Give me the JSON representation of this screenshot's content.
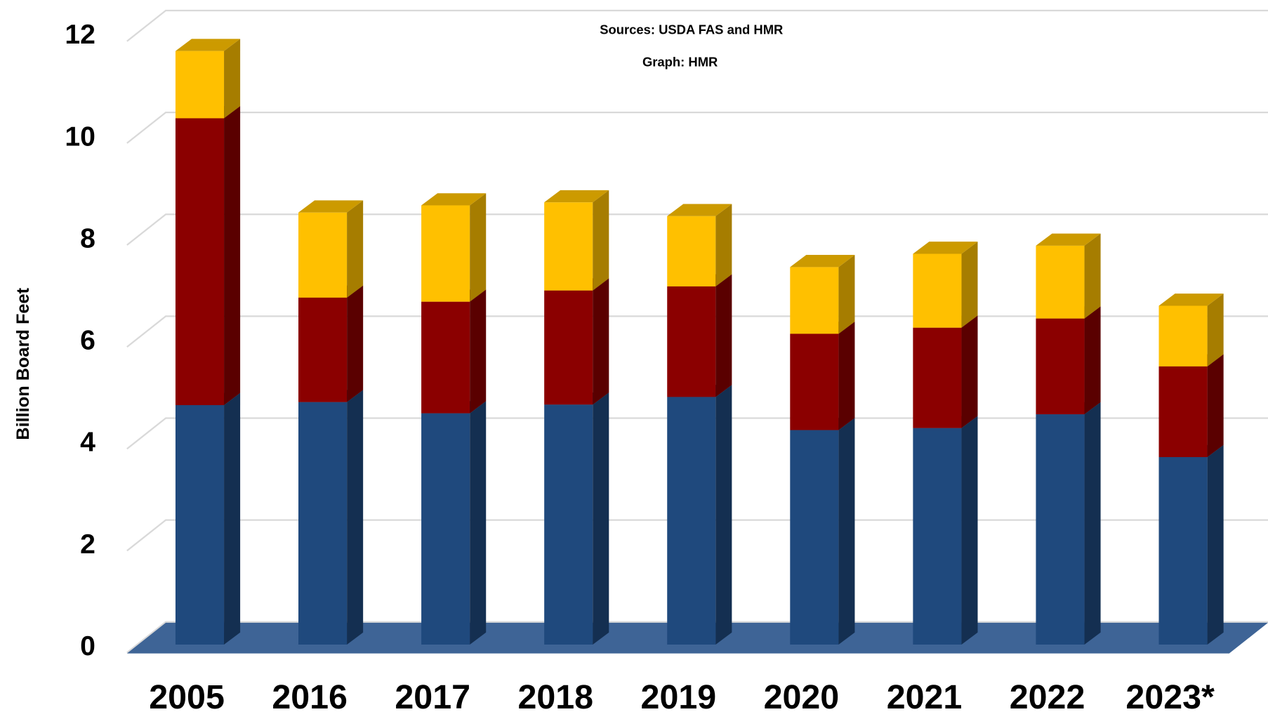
{
  "chart_data": {
    "type": "bar3d-stacked",
    "subtitle": "Sources: USDA FAS and HMR",
    "annotation": "Graph: HMR",
    "y_label": "Billion Board Feet",
    "categories": [
      "2005",
      "2016",
      "2017",
      "2018",
      "2019",
      "2020",
      "2021",
      "2022",
      "2023*"
    ],
    "series": [
      {
        "color": "#1f497d",
        "values": [
          4.7,
          4.76,
          4.54,
          4.71,
          4.86,
          4.21,
          4.25,
          4.52,
          3.68
        ]
      },
      {
        "color": "#8b0000",
        "values": [
          5.63,
          2.05,
          2.19,
          2.24,
          2.17,
          1.89,
          1.97,
          1.88,
          1.78
        ]
      },
      {
        "color": "#ffc000",
        "values": [
          1.32,
          1.67,
          1.89,
          1.73,
          1.38,
          1.31,
          1.45,
          1.43,
          1.19
        ]
      }
    ],
    "ylim": [
      0,
      12
    ],
    "yticks": [
      0,
      2,
      4,
      6,
      8,
      10,
      12
    ],
    "grid": true
  }
}
